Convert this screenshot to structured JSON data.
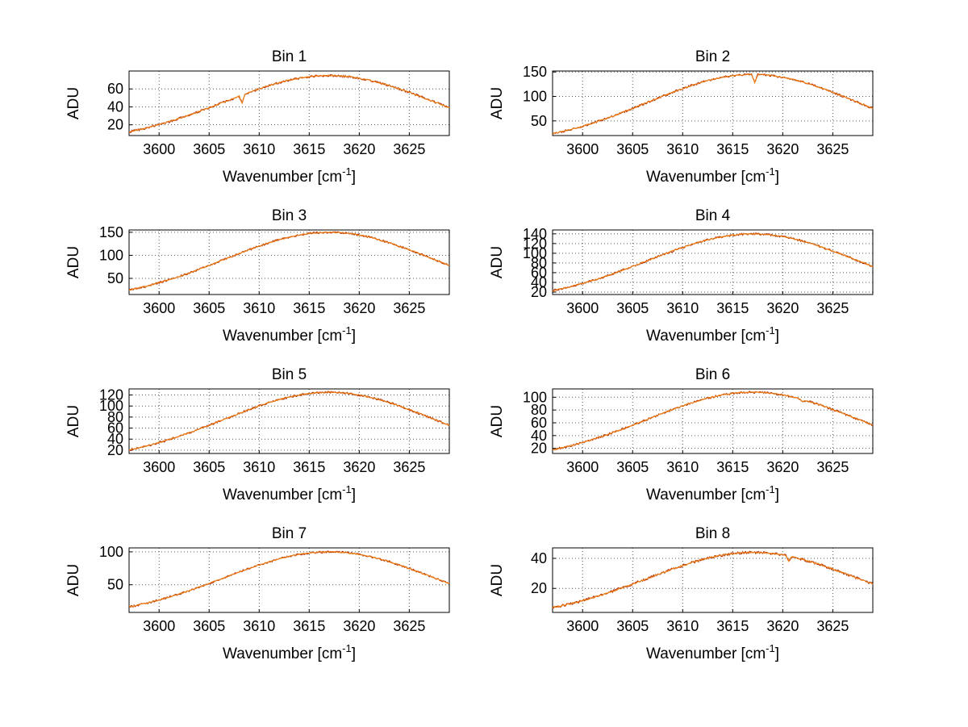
{
  "figure": {
    "background": "#ffffff",
    "line_colors": [
      "#a82800",
      "#ee7c11"
    ],
    "grid_color": "#555555",
    "axis_color": "#000000"
  },
  "chart_data": [
    {
      "type": "line",
      "title": "Bin 1",
      "ylabel": "ADU",
      "xlabel": {
        "prefix": "Wavenumber [cm",
        "sup": "-1",
        "suffix": "]"
      },
      "xlim": [
        3597,
        3629
      ],
      "ylim": [
        8,
        80
      ],
      "x_ticks": [
        3600,
        3605,
        3610,
        3615,
        3620,
        3625
      ],
      "y_ticks": [
        20,
        40,
        60
      ],
      "x_start": 3597,
      "x_step": 1,
      "values": [
        12.2,
        14.6,
        17.3,
        20.3,
        23.5,
        27.0,
        30.8,
        34.9,
        39.0,
        43.4,
        47.6,
        51.9,
        56.1,
        60.0,
        63.8,
        67.0,
        69.8,
        72.0,
        73.7,
        74.6,
        75.0,
        74.6,
        73.7,
        72.0,
        69.8,
        67.0,
        63.8,
        60.0,
        56.1,
        51.9,
        47.6,
        43.4,
        39.0
      ],
      "dips": [
        {
          "x": 3608.3,
          "depth": 9
        }
      ],
      "grid": true
    },
    {
      "type": "line",
      "title": "Bin 2",
      "ylabel": "ADU",
      "xlabel": {
        "prefix": "Wavenumber [cm",
        "sup": "-1",
        "suffix": "]"
      },
      "xlim": [
        3597,
        3629
      ],
      "ylim": [
        20,
        152
      ],
      "x_ticks": [
        3600,
        3605,
        3610,
        3615,
        3620,
        3625
      ],
      "y_ticks": [
        50,
        100,
        150
      ],
      "x_start": 3597,
      "x_step": 1,
      "values": [
        23.6,
        28.3,
        33.4,
        39.2,
        45.4,
        52.2,
        59.6,
        67.4,
        75.4,
        83.8,
        92.1,
        100.3,
        108.5,
        116.0,
        123.3,
        129.5,
        134.9,
        139.2,
        142.4,
        144.3,
        145.0,
        144.3,
        142.4,
        139.2,
        134.9,
        129.5,
        123.3,
        116.0,
        108.5,
        100.3,
        92.1,
        83.8,
        75.4
      ],
      "dips": [
        {
          "x": 3617.2,
          "depth": 16
        }
      ],
      "grid": true
    },
    {
      "type": "line",
      "title": "Bin 3",
      "ylabel": "ADU",
      "xlabel": {
        "prefix": "Wavenumber [cm",
        "sup": "-1",
        "suffix": "]"
      },
      "xlim": [
        3597,
        3629
      ],
      "ylim": [
        15,
        155
      ],
      "x_ticks": [
        3600,
        3605,
        3610,
        3615,
        3620,
        3625
      ],
      "y_ticks": [
        50,
        100,
        150
      ],
      "x_start": 3597,
      "x_step": 1,
      "values": [
        24.5,
        29.3,
        34.5,
        40.5,
        47.0,
        54.0,
        61.7,
        69.8,
        78.0,
        86.7,
        95.3,
        103.8,
        112.2,
        120.0,
        127.5,
        134.0,
        139.5,
        144.0,
        147.3,
        149.3,
        150.0,
        149.3,
        147.3,
        144.0,
        139.5,
        134.0,
        127.5,
        120.0,
        112.2,
        103.8,
        95.3,
        86.7,
        78.0
      ],
      "dips": [],
      "grid": true
    },
    {
      "type": "line",
      "title": "Bin 4",
      "ylabel": "ADU",
      "xlabel": {
        "prefix": "Wavenumber [cm",
        "sup": "-1",
        "suffix": "]"
      },
      "xlim": [
        3597,
        3629
      ],
      "ylim": [
        15,
        148
      ],
      "x_ticks": [
        3600,
        3605,
        3610,
        3615,
        3620,
        3625
      ],
      "y_ticks": [
        20,
        40,
        60,
        80,
        100,
        120,
        140
      ],
      "x_start": 3597,
      "x_step": 1,
      "values": [
        22.8,
        27.3,
        32.2,
        37.8,
        43.8,
        50.4,
        57.5,
        65.1,
        72.8,
        80.9,
        88.9,
        96.9,
        104.7,
        112.0,
        119.0,
        125.0,
        130.2,
        134.4,
        137.5,
        139.3,
        140.0,
        139.3,
        137.5,
        134.4,
        130.2,
        125.0,
        119.0,
        112.0,
        104.7,
        96.9,
        88.9,
        80.9,
        72.8
      ],
      "dips": [],
      "grid": true
    },
    {
      "type": "line",
      "title": "Bin 5",
      "ylabel": "ADU",
      "xlabel": {
        "prefix": "Wavenumber [cm",
        "sup": "-1",
        "suffix": "]"
      },
      "xlim": [
        3597,
        3629
      ],
      "ylim": [
        14,
        131
      ],
      "x_ticks": [
        3600,
        3605,
        3610,
        3615,
        3620,
        3625
      ],
      "y_ticks": [
        20,
        40,
        60,
        80,
        100,
        120
      ],
      "x_start": 3597,
      "x_step": 1,
      "values": [
        20.4,
        24.4,
        28.8,
        33.8,
        39.1,
        45.0,
        51.4,
        58.1,
        65.0,
        72.3,
        79.4,
        86.5,
        93.5,
        100.0,
        106.3,
        111.6,
        116.3,
        120.0,
        122.8,
        124.4,
        125.0,
        124.4,
        122.8,
        120.0,
        116.3,
        111.6,
        106.3,
        100.0,
        93.5,
        86.5,
        79.4,
        72.3,
        65.0
      ],
      "dips": [],
      "grid": true
    },
    {
      "type": "line",
      "title": "Bin 6",
      "ylabel": "ADU",
      "xlabel": {
        "prefix": "Wavenumber [cm",
        "sup": "-1",
        "suffix": "]"
      },
      "xlim": [
        3597,
        3629
      ],
      "ylim": [
        12,
        113
      ],
      "x_ticks": [
        3600,
        3605,
        3610,
        3615,
        3620,
        3625
      ],
      "y_ticks": [
        20,
        40,
        60,
        80,
        100
      ],
      "x_start": 3597,
      "x_step": 1,
      "values": [
        17.6,
        21.1,
        24.8,
        29.2,
        33.8,
        38.9,
        44.4,
        50.2,
        56.2,
        62.4,
        68.6,
        74.7,
        80.8,
        86.4,
        91.8,
        96.4,
        100.4,
        103.7,
        106.1,
        107.5,
        108.0,
        107.5,
        106.1,
        103.7,
        100.4,
        96.4,
        91.8,
        86.4,
        80.8,
        74.7,
        68.6,
        62.4,
        56.2
      ],
      "dips": [
        {
          "x": 3622.0,
          "depth": 4
        }
      ],
      "grid": true
    },
    {
      "type": "line",
      "title": "Bin 7",
      "ylabel": "ADU",
      "xlabel": {
        "prefix": "Wavenumber [cm",
        "sup": "-1",
        "suffix": "]"
      },
      "xlim": [
        3597,
        3629
      ],
      "ylim": [
        8,
        106
      ],
      "x_ticks": [
        3600,
        3605,
        3610,
        3615,
        3620,
        3625
      ],
      "y_ticks": [
        50,
        100
      ],
      "x_start": 3597,
      "x_step": 1,
      "values": [
        16.3,
        19.5,
        23.0,
        27.0,
        31.3,
        36.0,
        41.1,
        46.5,
        52.0,
        57.8,
        63.5,
        69.2,
        74.8,
        80.0,
        85.0,
        89.3,
        93.0,
        96.0,
        98.2,
        99.5,
        100.0,
        99.5,
        98.2,
        96.0,
        93.0,
        89.3,
        85.0,
        80.0,
        74.8,
        69.2,
        63.5,
        57.8,
        52.0
      ],
      "dips": [],
      "grid": true
    },
    {
      "type": "line",
      "title": "Bin 8",
      "ylabel": "ADU",
      "xlabel": {
        "prefix": "Wavenumber [cm",
        "sup": "-1",
        "suffix": "]"
      },
      "xlim": [
        3597,
        3629
      ],
      "ylim": [
        4,
        47
      ],
      "x_ticks": [
        3600,
        3605,
        3610,
        3615,
        3620,
        3625
      ],
      "y_ticks": [
        20,
        40
      ],
      "x_start": 3597,
      "x_step": 1,
      "values": [
        7.2,
        8.6,
        10.1,
        11.9,
        13.8,
        15.8,
        18.1,
        20.5,
        22.9,
        25.4,
        27.9,
        30.4,
        32.9,
        35.2,
        37.4,
        39.3,
        40.9,
        42.2,
        43.2,
        43.8,
        44.0,
        43.8,
        43.2,
        42.2,
        40.9,
        39.3,
        37.4,
        35.2,
        32.9,
        30.4,
        27.9,
        25.4,
        22.9
      ],
      "dips": [
        {
          "x": 3620.6,
          "depth": 3
        }
      ],
      "grid": true
    }
  ]
}
